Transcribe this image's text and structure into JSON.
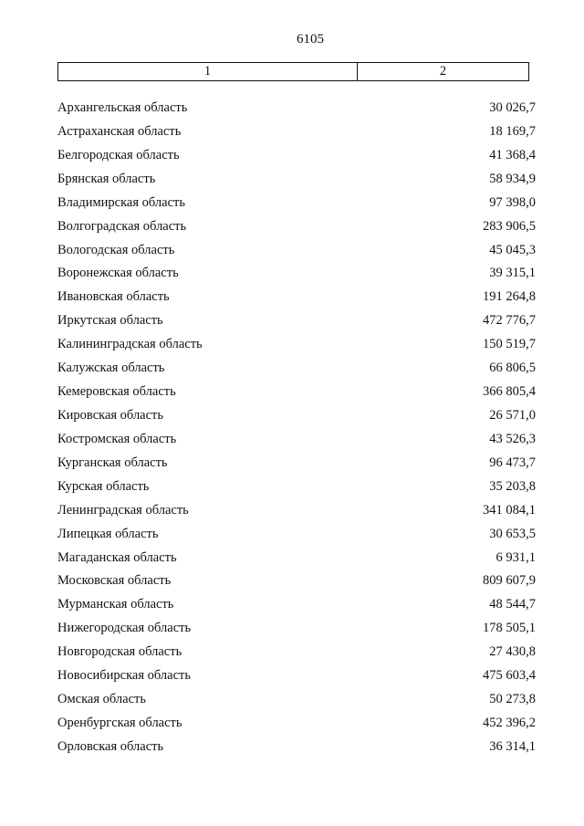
{
  "page_number": "6105",
  "table": {
    "headers": [
      "1",
      "2"
    ],
    "rows": [
      {
        "region": "Архангельская область",
        "value": "30 026,7"
      },
      {
        "region": "Астраханская область",
        "value": "18 169,7"
      },
      {
        "region": "Белгородская область",
        "value": "41 368,4"
      },
      {
        "region": "Брянская область",
        "value": "58 934,9"
      },
      {
        "region": "Владимирская область",
        "value": "97 398,0"
      },
      {
        "region": "Волгоградская область",
        "value": "283 906,5"
      },
      {
        "region": "Вологодская область",
        "value": "45 045,3"
      },
      {
        "region": "Воронежская область",
        "value": "39 315,1"
      },
      {
        "region": "Ивановская область",
        "value": "191 264,8"
      },
      {
        "region": "Иркутская область",
        "value": "472 776,7"
      },
      {
        "region": "Калининградская область",
        "value": "150 519,7"
      },
      {
        "region": "Калужская область",
        "value": "66 806,5"
      },
      {
        "region": "Кемеровская область",
        "value": "366 805,4"
      },
      {
        "region": "Кировская область",
        "value": "26 571,0"
      },
      {
        "region": "Костромская область",
        "value": "43 526,3"
      },
      {
        "region": "Курганская область",
        "value": "96 473,7"
      },
      {
        "region": "Курская область",
        "value": "35 203,8"
      },
      {
        "region": "Ленинградская область",
        "value": "341 084,1"
      },
      {
        "region": "Липецкая область",
        "value": "30 653,5"
      },
      {
        "region": "Магаданская область",
        "value": "6 931,1"
      },
      {
        "region": "Московская область",
        "value": "809 607,9"
      },
      {
        "region": "Мурманская область",
        "value": "48 544,7"
      },
      {
        "region": "Нижегородская область",
        "value": "178 505,1"
      },
      {
        "region": "Новгородская область",
        "value": "27 430,8"
      },
      {
        "region": "Новосибирская область",
        "value": "475 603,4"
      },
      {
        "region": "Омская область",
        "value": "50 273,8"
      },
      {
        "region": "Оренбургская область",
        "value": "452 396,2"
      },
      {
        "region": "Орловская область",
        "value": "36 314,1"
      }
    ]
  }
}
